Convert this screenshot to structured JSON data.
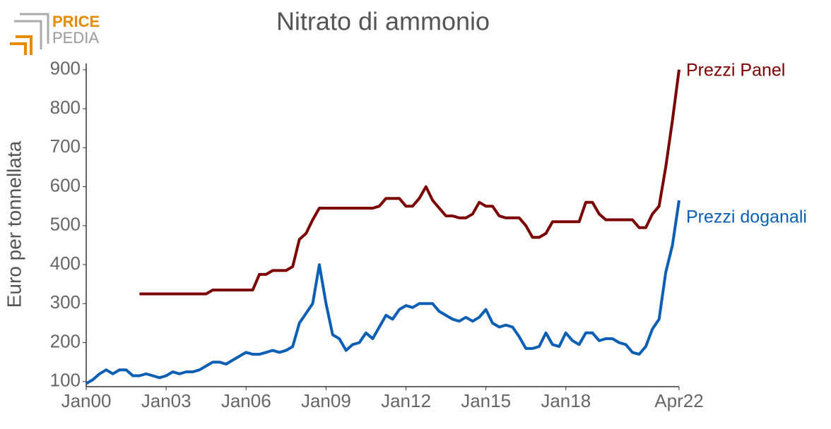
{
  "chart_data": {
    "type": "line",
    "title": "Nitrato di ammonio",
    "logo": [
      "PRICE",
      "PEDIA"
    ],
    "y_label": "Euro per tonnellata",
    "categories": [
      "Jan00",
      null,
      null,
      null,
      null,
      null,
      null,
      null,
      null,
      null,
      null,
      null,
      "Jan03",
      null,
      null,
      null,
      null,
      null,
      null,
      null,
      null,
      null,
      null,
      null,
      "Jan06",
      null,
      null,
      null,
      null,
      null,
      null,
      null,
      null,
      null,
      null,
      null,
      "Jan09",
      null,
      null,
      null,
      null,
      null,
      null,
      null,
      null,
      null,
      null,
      null,
      "Jan12",
      null,
      null,
      null,
      null,
      null,
      null,
      null,
      null,
      null,
      null,
      null,
      "Jan15",
      null,
      null,
      null,
      null,
      null,
      null,
      null,
      null,
      null,
      null,
      null,
      "Jan18",
      null,
      null,
      null,
      null,
      null,
      null,
      null,
      null,
      null,
      null,
      null,
      null,
      null,
      null,
      null,
      null,
      "Apr22"
    ],
    "series": [
      {
        "name": "Prezzi Panel",
        "color": "#7b0000",
        "values": [
          null,
          null,
          null,
          null,
          null,
          null,
          null,
          null,
          325,
          325,
          325,
          325,
          325,
          325,
          325,
          325,
          325,
          325,
          325,
          335,
          335,
          335,
          335,
          335,
          335,
          335,
          375,
          375,
          385,
          385,
          385,
          395,
          465,
          480,
          515,
          545,
          545,
          545,
          545,
          545,
          545,
          545,
          545,
          545,
          550,
          570,
          570,
          570,
          550,
          550,
          570,
          600,
          565,
          545,
          525,
          525,
          520,
          520,
          530,
          560,
          550,
          550,
          525,
          520,
          520,
          520,
          500,
          470,
          470,
          480,
          510,
          510,
          510,
          510,
          510,
          560,
          560,
          530,
          515,
          515,
          515,
          515,
          515,
          495,
          495,
          530,
          550,
          650,
          770,
          900
        ]
      },
      {
        "name": "Prezzi doganali",
        "color": "#0a5fb4",
        "values": [
          95,
          105,
          120,
          130,
          120,
          130,
          130,
          115,
          115,
          120,
          115,
          110,
          115,
          125,
          120,
          125,
          125,
          130,
          140,
          150,
          150,
          145,
          155,
          165,
          175,
          170,
          170,
          175,
          180,
          175,
          180,
          190,
          250,
          275,
          300,
          400,
          300,
          220,
          210,
          180,
          195,
          200,
          225,
          210,
          240,
          270,
          260,
          285,
          295,
          290,
          300,
          300,
          300,
          280,
          270,
          260,
          255,
          265,
          255,
          265,
          285,
          250,
          240,
          245,
          240,
          215,
          185,
          185,
          190,
          225,
          195,
          190,
          225,
          205,
          195,
          225,
          225,
          205,
          210,
          210,
          200,
          195,
          175,
          170,
          190,
          235,
          260,
          380,
          450,
          565
        ]
      }
    ],
    "ylim": [
      87,
      916
    ],
    "yticks": [
      100,
      200,
      300,
      400,
      500,
      600,
      700,
      800,
      900
    ]
  }
}
